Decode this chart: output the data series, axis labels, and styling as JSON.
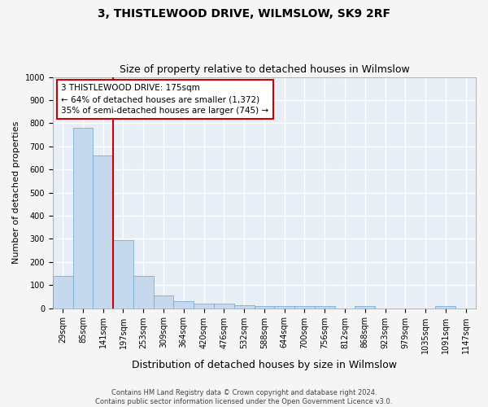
{
  "title": "3, THISTLEWOOD DRIVE, WILMSLOW, SK9 2RF",
  "subtitle": "Size of property relative to detached houses in Wilmslow",
  "xlabel": "Distribution of detached houses by size in Wilmslow",
  "ylabel": "Number of detached properties",
  "bar_color": "#c5d8ed",
  "bar_edge_color": "#7aadd4",
  "categories": [
    "29sqm",
    "85sqm",
    "141sqm",
    "197sqm",
    "253sqm",
    "309sqm",
    "364sqm",
    "420sqm",
    "476sqm",
    "532sqm",
    "588sqm",
    "644sqm",
    "700sqm",
    "756sqm",
    "812sqm",
    "868sqm",
    "923sqm",
    "979sqm",
    "1035sqm",
    "1091sqm",
    "1147sqm"
  ],
  "values": [
    140,
    780,
    660,
    295,
    138,
    55,
    30,
    20,
    20,
    13,
    8,
    8,
    8,
    8,
    0,
    8,
    0,
    0,
    0,
    8,
    0
  ],
  "ylim": [
    0,
    1000
  ],
  "yticks": [
    0,
    100,
    200,
    300,
    400,
    500,
    600,
    700,
    800,
    900,
    1000
  ],
  "vline_index": 2.5,
  "vline_color": "#cc0000",
  "annotation_text": "3 THISTLEWOOD DRIVE: 175sqm\n← 64% of detached houses are smaller (1,372)\n35% of semi-detached houses are larger (745) →",
  "annotation_box_color": "#ffffff",
  "annotation_box_edge": "#cc0000",
  "footer_line1": "Contains HM Land Registry data © Crown copyright and database right 2024.",
  "footer_line2": "Contains public sector information licensed under the Open Government Licence v3.0.",
  "plot_bg_color": "#e8eef5",
  "fig_bg_color": "#f5f5f5",
  "grid_color": "#ffffff",
  "title_fontsize": 10,
  "subtitle_fontsize": 9,
  "tick_fontsize": 7,
  "ylabel_fontsize": 8,
  "xlabel_fontsize": 9,
  "annotation_fontsize": 7.5,
  "footer_fontsize": 6
}
